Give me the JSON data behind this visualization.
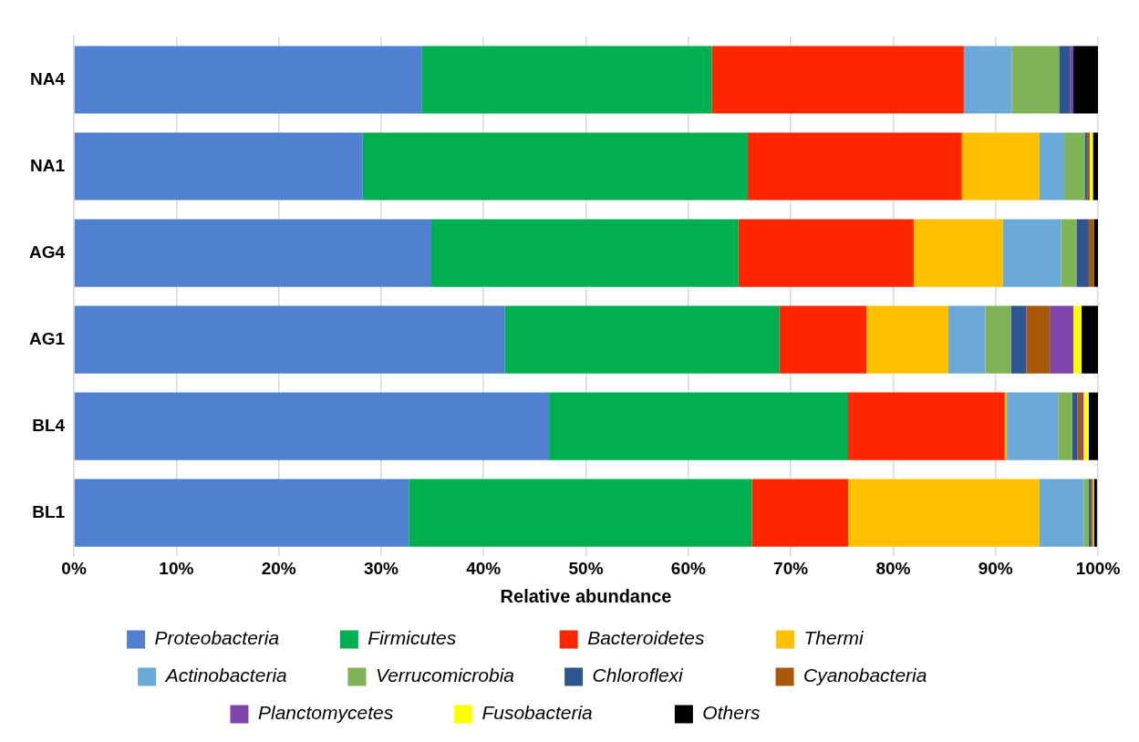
{
  "chart_data": {
    "type": "bar",
    "orientation": "horizontal",
    "stacked": true,
    "xlabel": "Relative abundance",
    "categories": [
      "NA4",
      "NA1",
      "AG4",
      "AG1",
      "BL4",
      "BL1"
    ],
    "xlim": [
      0,
      100
    ],
    "xticks": [
      {
        "value": 0,
        "label": "0%"
      },
      {
        "value": 10,
        "label": "10%"
      },
      {
        "value": 20,
        "label": "20%"
      },
      {
        "value": 30,
        "label": "30%"
      },
      {
        "value": 40,
        "label": "40%"
      },
      {
        "value": 50,
        "label": "50%"
      },
      {
        "value": 60,
        "label": "60%"
      },
      {
        "value": 70,
        "label": "70%"
      },
      {
        "value": 80,
        "label": "80%"
      },
      {
        "value": 90,
        "label": "90%"
      },
      {
        "value": 100,
        "label": "100%"
      }
    ],
    "grid": "x",
    "legend": "bottom",
    "series": [
      {
        "name": "Proteobacteria",
        "color": "#4f81d0",
        "values": [
          34.0,
          28.2,
          34.9,
          42.1,
          46.4,
          32.7
        ]
      },
      {
        "name": "Firmicutes",
        "color": "#00b050",
        "values": [
          28.3,
          37.6,
          30.0,
          26.8,
          29.2,
          33.5
        ]
      },
      {
        "name": "Bacteroidetes",
        "color": "#ff2600",
        "values": [
          24.6,
          20.9,
          17.1,
          8.5,
          15.3,
          9.4
        ]
      },
      {
        "name": "Thermi",
        "color": "#ffc000",
        "values": [
          0,
          7.6,
          8.7,
          8.0,
          0.2,
          18.7
        ]
      },
      {
        "name": "Actinobacteria",
        "color": "#6aa9d8",
        "values": [
          4.7,
          2.4,
          5.7,
          3.6,
          5.0,
          4.3
        ]
      },
      {
        "name": "Verrucomicrobia",
        "color": "#7fb356",
        "values": [
          4.6,
          2.0,
          1.5,
          2.5,
          1.4,
          0.5
        ]
      },
      {
        "name": "Chloroflexi",
        "color": "#2f5590",
        "values": [
          1.1,
          0.3,
          1.2,
          1.5,
          0.5,
          0.2
        ]
      },
      {
        "name": "Cyanobacteria",
        "color": "#a95709",
        "values": [
          0,
          0.2,
          0.5,
          2.3,
          0.4,
          0.2
        ]
      },
      {
        "name": "Planctomycetes",
        "color": "#7f44ab",
        "values": [
          0.3,
          0,
          0,
          2.3,
          0.2,
          null
        ]
      },
      {
        "name": "Fusobacteria",
        "color": "#ffff00",
        "values": [
          0,
          0.3,
          0,
          0.8,
          0.5,
          0.1
        ]
      },
      {
        "name": "Others",
        "color": "#000000",
        "values": [
          2.4,
          0.5,
          0.4,
          1.6,
          0.9,
          0.3
        ]
      }
    ]
  }
}
